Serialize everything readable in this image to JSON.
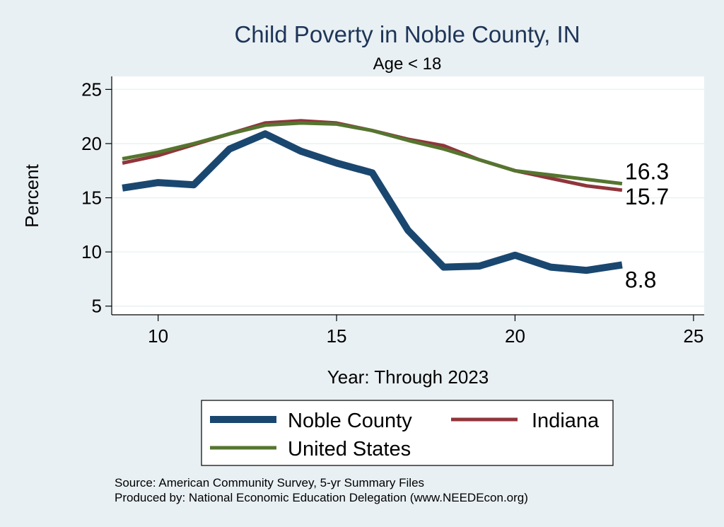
{
  "chart_data": {
    "type": "line",
    "title": "Child Poverty in Noble County, IN",
    "subtitle": "Age < 18",
    "xlabel": "Year: Through 2023",
    "ylabel": "Percent",
    "xlim": [
      8.7,
      25.3
    ],
    "ylim": [
      4.2,
      26.2
    ],
    "xticks": [
      10,
      15,
      20,
      25
    ],
    "yticks": [
      5,
      10,
      15,
      20,
      25
    ],
    "grid": true,
    "legend_position": "bottom",
    "x": [
      9,
      10,
      11,
      12,
      13,
      14,
      15,
      16,
      17,
      18,
      19,
      20,
      21,
      22,
      23
    ],
    "series": [
      {
        "name": "Noble County",
        "color": "#1a476f",
        "values": [
          15.9,
          16.4,
          16.2,
          19.5,
          20.9,
          19.3,
          18.2,
          17.3,
          12.0,
          8.6,
          8.7,
          9.7,
          8.6,
          8.3,
          8.8
        ],
        "end_label": "8.8"
      },
      {
        "name": "Indiana",
        "color": "#90353b",
        "values": [
          18.2,
          18.9,
          19.9,
          20.9,
          21.9,
          22.1,
          21.9,
          21.2,
          20.4,
          19.8,
          18.5,
          17.5,
          16.8,
          16.1,
          15.7
        ],
        "end_label": "15.7"
      },
      {
        "name": "United States",
        "color": "#55752f",
        "values": [
          18.6,
          19.2,
          20.0,
          20.9,
          21.7,
          21.9,
          21.8,
          21.2,
          20.3,
          19.5,
          18.5,
          17.5,
          17.1,
          16.7,
          16.3
        ],
        "end_label": "16.3"
      }
    ],
    "source_lines": [
      "Source: American Community Survey, 5-yr Summary Files",
      "Produced by: National Economic Education Delegation (www.NEEDEcon.org)"
    ]
  }
}
